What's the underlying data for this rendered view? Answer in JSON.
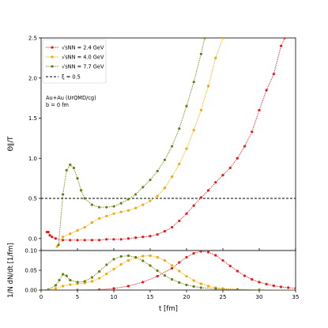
{
  "chart_data": [
    {
      "type": "line",
      "panel": "top",
      "ylabel": "Θ∥/T",
      "xlim": [
        0,
        35
      ],
      "ylim": [
        -0.15,
        2.5
      ],
      "yticks": [
        0.0,
        0.5,
        1.0,
        1.5,
        2.0,
        2.5
      ],
      "ytick_labels": [
        "0.0",
        "0.5",
        "1.0",
        "1.5",
        "2.0",
        "2.5"
      ],
      "grid": false,
      "legend_position": "top-left",
      "annotation": [
        "Au+Au (UrQMD/cg)",
        "b = 0 fm"
      ],
      "reference_line": {
        "y": 0.5,
        "label": "ξ = 0.5",
        "color": "#000000",
        "style": "dashed"
      },
      "series": [
        {
          "name": "√sNN = 2.4 GeV",
          "color": "#e8191c",
          "points": [
            [
              0.8,
              0.08
            ],
            [
              1.0,
              0.08
            ],
            [
              1.2,
              0.04
            ],
            [
              1.5,
              0.02
            ],
            [
              2,
              0.0
            ],
            [
              3,
              -0.02
            ],
            [
              4,
              -0.02
            ],
            [
              5,
              -0.02
            ],
            [
              6,
              -0.02
            ],
            [
              7,
              -0.02
            ],
            [
              8,
              -0.02
            ],
            [
              9,
              -0.01
            ],
            [
              10,
              -0.01
            ],
            [
              11,
              -0.01
            ],
            [
              12,
              0.0
            ],
            [
              13,
              0.01
            ],
            [
              14,
              0.02
            ],
            [
              15,
              0.03
            ],
            [
              16,
              0.05
            ],
            [
              17,
              0.09
            ],
            [
              18,
              0.14
            ],
            [
              19,
              0.22
            ],
            [
              20,
              0.31
            ],
            [
              21,
              0.41
            ],
            [
              22,
              0.51
            ],
            [
              23,
              0.6
            ],
            [
              24,
              0.7
            ],
            [
              25,
              0.79
            ],
            [
              26,
              0.88
            ],
            [
              27,
              1.0
            ],
            [
              28,
              1.15
            ],
            [
              29,
              1.33
            ],
            [
              30,
              1.6
            ],
            [
              31,
              1.85
            ],
            [
              32,
              2.05
            ],
            [
              33,
              2.4
            ],
            [
              33.5,
              2.5
            ]
          ]
        },
        {
          "name": "√sNN = 4.0 GeV",
          "color": "#f5a800",
          "points": [
            [
              2.2,
              -0.1
            ],
            [
              3,
              0.02
            ],
            [
              4,
              0.06
            ],
            [
              5,
              0.1
            ],
            [
              6,
              0.14
            ],
            [
              7,
              0.2
            ],
            [
              8,
              0.25
            ],
            [
              9,
              0.28
            ],
            [
              10,
              0.31
            ],
            [
              11,
              0.33
            ],
            [
              12,
              0.35
            ],
            [
              13,
              0.38
            ],
            [
              14,
              0.42
            ],
            [
              15,
              0.47
            ],
            [
              16,
              0.53
            ],
            [
              17,
              0.63
            ],
            [
              18,
              0.77
            ],
            [
              19,
              0.93
            ],
            [
              20,
              1.12
            ],
            [
              21,
              1.35
            ],
            [
              22,
              1.6
            ],
            [
              23,
              1.9
            ],
            [
              24,
              2.25
            ],
            [
              25,
              2.5
            ]
          ]
        },
        {
          "name": "√sNN = 7.7 GeV",
          "color": "#6e7d10",
          "points": [
            [
              2.4,
              -0.08
            ],
            [
              3,
              0.55
            ],
            [
              3.5,
              0.85
            ],
            [
              4,
              0.92
            ],
            [
              4.5,
              0.88
            ],
            [
              5,
              0.75
            ],
            [
              5.5,
              0.6
            ],
            [
              6,
              0.5
            ],
            [
              7,
              0.42
            ],
            [
              8,
              0.39
            ],
            [
              9,
              0.39
            ],
            [
              10,
              0.4
            ],
            [
              11,
              0.44
            ],
            [
              12,
              0.49
            ],
            [
              13,
              0.55
            ],
            [
              14,
              0.64
            ],
            [
              15,
              0.73
            ],
            [
              16,
              0.84
            ],
            [
              17,
              0.98
            ],
            [
              18,
              1.15
            ],
            [
              19,
              1.37
            ],
            [
              20,
              1.65
            ],
            [
              21,
              1.95
            ],
            [
              22,
              2.3
            ],
            [
              22.5,
              2.5
            ]
          ]
        }
      ]
    },
    {
      "type": "line",
      "panel": "bottom",
      "xlabel": "t [fm]",
      "ylabel": "1/N dN/dt [1/fm]",
      "xlim": [
        0,
        35
      ],
      "ylim": [
        0,
        0.1
      ],
      "xticks": [
        0,
        5,
        10,
        15,
        20,
        25,
        30,
        35
      ],
      "xtick_labels": [
        "0",
        "5",
        "10",
        "15",
        "20",
        "25",
        "30",
        "35"
      ],
      "yticks": [
        0.0,
        0.05,
        0.1
      ],
      "ytick_labels": [
        "0.00",
        "0.05",
        "0.10"
      ],
      "grid": false,
      "series": [
        {
          "name": "√sNN = 2.4 GeV",
          "color": "#e8191c",
          "points": [
            [
              0,
              0
            ],
            [
              5,
              0.0
            ],
            [
              8,
              0.001
            ],
            [
              10,
              0.004
            ],
            [
              12,
              0.01
            ],
            [
              14,
              0.02
            ],
            [
              16,
              0.035
            ],
            [
              18,
              0.055
            ],
            [
              19,
              0.07
            ],
            [
              20,
              0.083
            ],
            [
              21,
              0.093
            ],
            [
              22,
              0.098
            ],
            [
              23,
              0.096
            ],
            [
              24,
              0.088
            ],
            [
              25,
              0.075
            ],
            [
              26,
              0.061
            ],
            [
              27,
              0.048
            ],
            [
              28,
              0.036
            ],
            [
              29,
              0.027
            ],
            [
              30,
              0.02
            ],
            [
              31,
              0.015
            ],
            [
              32,
              0.011
            ],
            [
              33,
              0.008
            ],
            [
              34,
              0.006
            ],
            [
              35,
              0.004
            ]
          ]
        },
        {
          "name": "√sNN = 4.0 GeV",
          "color": "#f5a800",
          "points": [
            [
              0,
              0
            ],
            [
              1,
              0.001
            ],
            [
              2,
              0.004
            ],
            [
              3,
              0.01
            ],
            [
              4,
              0.014
            ],
            [
              5,
              0.016
            ],
            [
              6,
              0.018
            ],
            [
              7,
              0.022
            ],
            [
              8,
              0.03
            ],
            [
              9,
              0.041
            ],
            [
              10,
              0.053
            ],
            [
              11,
              0.065
            ],
            [
              12,
              0.075
            ],
            [
              13,
              0.082
            ],
            [
              14,
              0.086
            ],
            [
              15,
              0.087
            ],
            [
              16,
              0.083
            ],
            [
              17,
              0.075
            ],
            [
              18,
              0.062
            ],
            [
              19,
              0.048
            ],
            [
              20,
              0.035
            ],
            [
              21,
              0.024
            ],
            [
              22,
              0.016
            ],
            [
              23,
              0.01
            ],
            [
              24,
              0.006
            ],
            [
              25,
              0.004
            ],
            [
              27,
              0.002
            ],
            [
              30,
              0.001
            ],
            [
              35,
              0.0
            ]
          ]
        },
        {
          "name": "√sNN = 7.7 GeV",
          "color": "#6e7d10",
          "points": [
            [
              0,
              0
            ],
            [
              1,
              0.001
            ],
            [
              2,
              0.012
            ],
            [
              2.5,
              0.025
            ],
            [
              3,
              0.04
            ],
            [
              3.5,
              0.036
            ],
            [
              4,
              0.025
            ],
            [
              5,
              0.02
            ],
            [
              6,
              0.022
            ],
            [
              7,
              0.032
            ],
            [
              8,
              0.047
            ],
            [
              9,
              0.064
            ],
            [
              10,
              0.078
            ],
            [
              11,
              0.085
            ],
            [
              12,
              0.087
            ],
            [
              13,
              0.083
            ],
            [
              14,
              0.074
            ],
            [
              15,
              0.062
            ],
            [
              16,
              0.049
            ],
            [
              17,
              0.037
            ],
            [
              18,
              0.027
            ],
            [
              19,
              0.019
            ],
            [
              20,
              0.013
            ],
            [
              21,
              0.009
            ],
            [
              22,
              0.006
            ],
            [
              24,
              0.003
            ],
            [
              27,
              0.001
            ],
            [
              30,
              0.0
            ],
            [
              35,
              0.0
            ]
          ]
        }
      ]
    }
  ]
}
